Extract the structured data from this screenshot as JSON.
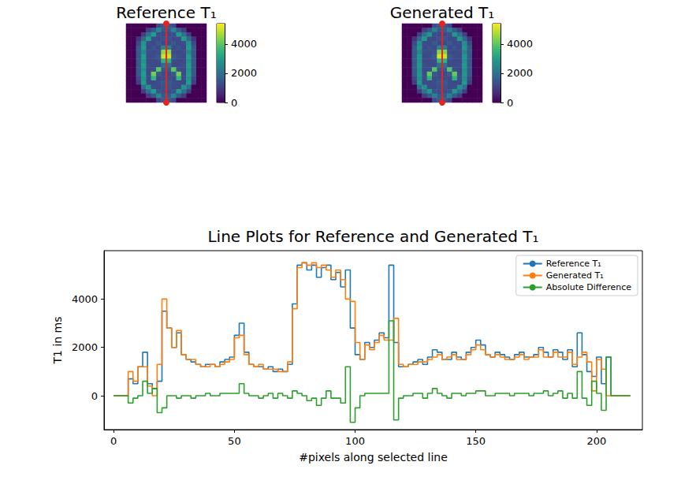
{
  "chart_data": [
    {
      "type": "heatmap",
      "title": "Reference T₁",
      "color": "viridis",
      "tick_labels": false,
      "color_range": [
        0,
        5400
      ],
      "color_ticks": [
        0,
        2000,
        4000
      ],
      "cells": [
        [
          0,
          0,
          0,
          0,
          0,
          0,
          1200,
          1500,
          1500,
          1200,
          0,
          0,
          0,
          0,
          0,
          0
        ],
        [
          0,
          0,
          0,
          0,
          1000,
          1500,
          2500,
          1500,
          1500,
          2500,
          1500,
          1000,
          0,
          0,
          0,
          0
        ],
        [
          0,
          0,
          0,
          1000,
          2000,
          3000,
          1300,
          1200,
          1200,
          1300,
          3000,
          2000,
          1000,
          0,
          0,
          0
        ],
        [
          0,
          0,
          800,
          1800,
          3000,
          1300,
          1200,
          1400,
          1400,
          1200,
          1300,
          3000,
          1800,
          800,
          0,
          0
        ],
        [
          0,
          0,
          1200,
          2800,
          1300,
          1200,
          1500,
          1200,
          1200,
          1500,
          1200,
          1300,
          2800,
          1200,
          0,
          0
        ],
        [
          0,
          0,
          1500,
          3000,
          1200,
          1400,
          1200,
          2500,
          2500,
          1200,
          1400,
          1200,
          3000,
          1500,
          0,
          0
        ],
        [
          0,
          0,
          1500,
          2500,
          1300,
          1200,
          1300,
          4500,
          4500,
          1300,
          1200,
          1300,
          2500,
          1500,
          0,
          0
        ],
        [
          0,
          0,
          1500,
          3000,
          1200,
          1300,
          1500,
          5000,
          5000,
          1500,
          1300,
          1200,
          3000,
          1500,
          0,
          0
        ],
        [
          0,
          0,
          1500,
          2800,
          1200,
          1200,
          1300,
          3500,
          3500,
          1300,
          1200,
          1200,
          2800,
          1500,
          0,
          0
        ],
        [
          0,
          0,
          1500,
          3000,
          1300,
          1200,
          1200,
          2000,
          2000,
          1200,
          1200,
          1300,
          3000,
          1500,
          0,
          0
        ],
        [
          0,
          0,
          1500,
          2800,
          1200,
          1300,
          4000,
          1500,
          1500,
          4000,
          1300,
          1200,
          2800,
          1500,
          0,
          0
        ],
        [
          0,
          0,
          1500,
          3000,
          1200,
          4200,
          1500,
          1200,
          1200,
          1500,
          4200,
          1200,
          3000,
          1500,
          0,
          0
        ],
        [
          0,
          0,
          1200,
          2800,
          1300,
          3500,
          1200,
          1300,
          1300,
          1200,
          3500,
          1300,
          2800,
          1200,
          0,
          0
        ],
        [
          0,
          0,
          1000,
          3000,
          1200,
          1200,
          1300,
          1500,
          1500,
          1300,
          1200,
          1200,
          3000,
          1000,
          0,
          0
        ],
        [
          0,
          0,
          0,
          2000,
          2800,
          1300,
          1200,
          1400,
          1400,
          1200,
          1300,
          2800,
          2000,
          0,
          0,
          0
        ],
        [
          0,
          0,
          0,
          1000,
          2000,
          3000,
          1400,
          1300,
          1300,
          1400,
          3000,
          2000,
          1000,
          0,
          0,
          0
        ],
        [
          0,
          0,
          0,
          0,
          1000,
          1500,
          2500,
          1500,
          1500,
          2500,
          1500,
          1000,
          0,
          0,
          0,
          0
        ],
        [
          0,
          0,
          0,
          0,
          0,
          0,
          1200,
          1500,
          1500,
          1200,
          0,
          0,
          0,
          0,
          0,
          0
        ]
      ]
    },
    {
      "type": "heatmap",
      "title": "Generated T₁",
      "color": "viridis",
      "tick_labels": false,
      "color_range": [
        0,
        5400
      ],
      "color_ticks": [
        0,
        2000,
        4000
      ],
      "cells": [
        [
          0,
          0,
          0,
          0,
          0,
          0,
          1200,
          1500,
          1500,
          1200,
          0,
          0,
          0,
          0,
          0,
          0
        ],
        [
          0,
          0,
          0,
          0,
          1000,
          1500,
          2400,
          1500,
          1500,
          2400,
          1500,
          1000,
          0,
          0,
          0,
          0
        ],
        [
          0,
          0,
          0,
          1000,
          2000,
          2900,
          1300,
          1200,
          1200,
          1300,
          2900,
          2000,
          1000,
          0,
          0,
          0
        ],
        [
          0,
          0,
          800,
          1800,
          2900,
          1300,
          1200,
          1400,
          1400,
          1200,
          1300,
          2900,
          1800,
          800,
          0,
          0
        ],
        [
          0,
          0,
          1200,
          2700,
          1300,
          1200,
          1500,
          1200,
          1200,
          1500,
          1200,
          1300,
          2700,
          1200,
          0,
          0
        ],
        [
          0,
          0,
          1500,
          2900,
          1200,
          1400,
          1200,
          2400,
          2400,
          1200,
          1400,
          1200,
          2900,
          1500,
          0,
          0
        ],
        [
          0,
          0,
          1500,
          2500,
          1300,
          1200,
          1300,
          4400,
          4400,
          1300,
          1200,
          1300,
          2500,
          1500,
          0,
          0
        ],
        [
          0,
          0,
          1500,
          2900,
          1200,
          1300,
          1500,
          5000,
          5000,
          1500,
          1300,
          1200,
          2900,
          1500,
          0,
          0
        ],
        [
          0,
          0,
          1500,
          2700,
          1200,
          1200,
          1300,
          3500,
          3500,
          1300,
          1200,
          1200,
          2700,
          1500,
          0,
          0
        ],
        [
          0,
          0,
          1500,
          2900,
          1300,
          1200,
          1200,
          2000,
          2000,
          1200,
          1200,
          1300,
          2900,
          1500,
          0,
          0
        ],
        [
          0,
          0,
          1500,
          2700,
          1200,
          1300,
          3900,
          1500,
          1500,
          3900,
          1300,
          1200,
          2700,
          1500,
          0,
          0
        ],
        [
          0,
          0,
          1500,
          2900,
          1200,
          4100,
          1500,
          1200,
          1200,
          1500,
          4100,
          1200,
          2900,
          1500,
          0,
          0
        ],
        [
          0,
          0,
          1200,
          2700,
          1300,
          3400,
          1200,
          1300,
          1300,
          1200,
          3400,
          1300,
          2700,
          1200,
          0,
          0
        ],
        [
          0,
          0,
          1000,
          2900,
          1200,
          1200,
          1300,
          1500,
          1500,
          1300,
          1200,
          1200,
          2900,
          1000,
          0,
          0
        ],
        [
          0,
          0,
          0,
          2000,
          2700,
          1300,
          1200,
          1400,
          1400,
          1200,
          1300,
          2700,
          2000,
          0,
          0,
          0
        ],
        [
          0,
          0,
          0,
          1000,
          2000,
          2900,
          1400,
          1300,
          1300,
          1400,
          2900,
          2000,
          1000,
          0,
          0,
          0
        ],
        [
          0,
          0,
          0,
          0,
          1000,
          1500,
          2400,
          1500,
          1500,
          2400,
          1500,
          1000,
          0,
          0,
          0,
          0
        ],
        [
          0,
          0,
          0,
          0,
          0,
          0,
          1200,
          1500,
          1500,
          1200,
          0,
          0,
          0,
          0,
          0,
          0
        ]
      ]
    },
    {
      "type": "line",
      "title": "Line Plots for Reference and Generated T₁",
      "x_label": "#pixels along selected line",
      "y_label": "T1 in ms",
      "line_style": "steps",
      "legend": "upper right",
      "grid": false,
      "xlim": [
        -4,
        219
      ],
      "xticks": [
        0,
        50,
        100,
        150,
        200
      ],
      "ylim": [
        -1400,
        6000
      ],
      "yticks": [
        0,
        2000,
        4000
      ],
      "x": [
        0,
        2,
        4,
        6,
        8,
        10,
        12,
        14,
        16,
        18,
        20,
        22,
        24,
        26,
        28,
        30,
        32,
        34,
        36,
        38,
        40,
        42,
        44,
        46,
        48,
        50,
        52,
        54,
        56,
        58,
        60,
        62,
        64,
        66,
        68,
        70,
        72,
        74,
        76,
        78,
        80,
        82,
        84,
        86,
        88,
        90,
        92,
        94,
        96,
        98,
        100,
        102,
        104,
        106,
        108,
        110,
        112,
        114,
        116,
        118,
        120,
        122,
        124,
        126,
        128,
        130,
        132,
        134,
        136,
        138,
        140,
        142,
        144,
        146,
        148,
        150,
        152,
        154,
        156,
        158,
        160,
        162,
        164,
        166,
        168,
        170,
        172,
        174,
        176,
        178,
        180,
        182,
        184,
        186,
        188,
        190,
        192,
        194,
        196,
        198,
        200,
        202,
        204,
        206,
        208,
        210,
        212,
        214
      ],
      "series": [
        {
          "name": "Reference T₁",
          "color": "#1f77b4",
          "values": [
            0,
            0,
            0,
            700,
            500,
            1200,
            1800,
            500,
            300,
            600,
            3500,
            2800,
            2000,
            2600,
            1700,
            1500,
            1400,
            1300,
            1200,
            1300,
            1300,
            1200,
            1400,
            1500,
            1600,
            2500,
            3000,
            1800,
            1300,
            1200,
            1200,
            1100,
            1200,
            1000,
            1100,
            1000,
            1300,
            3800,
            5400,
            5500,
            5200,
            5400,
            4900,
            5300,
            5400,
            4800,
            5100,
            4500,
            5200,
            2800,
            1700,
            1500,
            2200,
            2000,
            2300,
            2600,
            2400,
            5400,
            2200,
            1200,
            1200,
            1300,
            1400,
            1500,
            1300,
            1600,
            1900,
            1800,
            1500,
            1500,
            1800,
            1600,
            1500,
            1800,
            2000,
            2300,
            2100,
            1700,
            1600,
            1800,
            1700,
            1600,
            1500,
            1700,
            1800,
            1600,
            1600,
            1700,
            2000,
            1800,
            1600,
            1900,
            1800,
            1500,
            1900,
            1200,
            2600,
            1700,
            1000,
            800,
            1600,
            500,
            1600,
            0,
            0,
            0,
            0,
            0
          ]
        },
        {
          "name": "Generated T₁",
          "color": "#ff7f0e",
          "values": [
            0,
            0,
            0,
            1000,
            600,
            1200,
            1200,
            400,
            0,
            1300,
            4000,
            2800,
            2000,
            2700,
            1700,
            1500,
            1500,
            1300,
            1200,
            1200,
            1300,
            1200,
            1300,
            1400,
            1500,
            2400,
            2500,
            1700,
            1300,
            1200,
            1300,
            1100,
            1100,
            1100,
            1000,
            1000,
            1400,
            3600,
            5300,
            5500,
            5400,
            5500,
            5300,
            5400,
            5200,
            4900,
            5200,
            4800,
            4000,
            3900,
            2200,
            1500,
            2100,
            1900,
            2200,
            2500,
            2300,
            2300,
            3200,
            1300,
            1200,
            1300,
            1300,
            1400,
            1400,
            1500,
            1600,
            1700,
            1500,
            1600,
            1700,
            1500,
            1500,
            1700,
            1900,
            2100,
            1900,
            1700,
            1600,
            1700,
            1600,
            1500,
            1500,
            1600,
            1700,
            1500,
            1600,
            1600,
            1900,
            1600,
            1600,
            1800,
            1600,
            1600,
            1800,
            1300,
            1600,
            1800,
            1400,
            200,
            1500,
            1100,
            0,
            0,
            0,
            0,
            0,
            0
          ]
        },
        {
          "name": "Absolute Difference",
          "color": "#2ca02c",
          "values": [
            0,
            0,
            0,
            -300,
            -100,
            0,
            600,
            100,
            300,
            -700,
            -500,
            0,
            0,
            -100,
            0,
            0,
            -100,
            0,
            0,
            100,
            0,
            0,
            100,
            100,
            100,
            100,
            500,
            100,
            0,
            0,
            -100,
            0,
            100,
            -100,
            100,
            0,
            -100,
            200,
            100,
            0,
            -200,
            -100,
            -400,
            -100,
            200,
            -100,
            -100,
            -300,
            1200,
            -1100,
            -500,
            0,
            100,
            100,
            100,
            100,
            100,
            3100,
            -1000,
            -100,
            0,
            0,
            100,
            100,
            -100,
            100,
            300,
            100,
            0,
            -100,
            100,
            100,
            0,
            100,
            100,
            200,
            200,
            0,
            0,
            100,
            100,
            100,
            0,
            100,
            100,
            100,
            0,
            100,
            100,
            200,
            0,
            100,
            200,
            -100,
            100,
            -100,
            1000,
            -100,
            -400,
            600,
            100,
            -600,
            1600,
            0,
            0,
            0,
            0,
            0
          ]
        }
      ]
    }
  ]
}
